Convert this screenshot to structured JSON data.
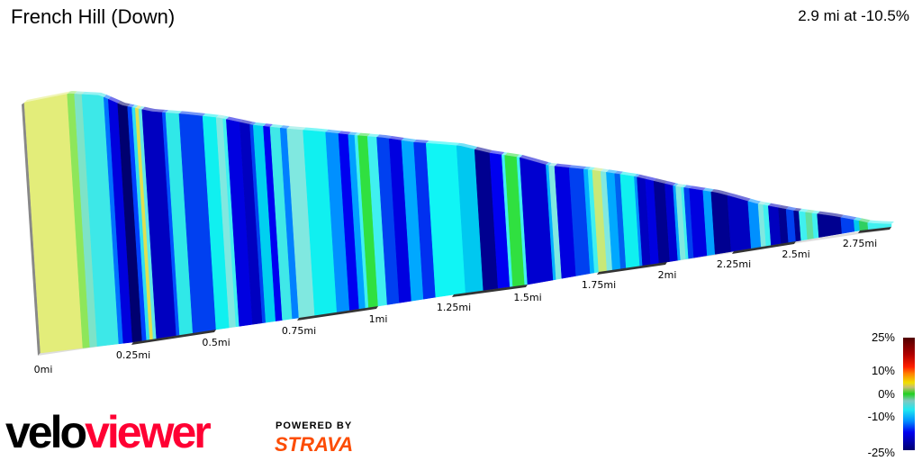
{
  "header": {
    "title": "French Hill (Down)",
    "summary": "2.9 mi at -10.5%"
  },
  "chart_data": {
    "type": "3d-elevation-profile",
    "x_unit": "mi",
    "xlim": [
      0,
      2.9
    ],
    "x_ticks": [
      {
        "v": 0,
        "label": "0mi"
      },
      {
        "v": 0.25,
        "label": "0.25mi"
      },
      {
        "v": 0.5,
        "label": "0.5mi"
      },
      {
        "v": 0.75,
        "label": "0.75mi"
      },
      {
        "v": 1,
        "label": "1mi"
      },
      {
        "v": 1.25,
        "label": "1.25mi"
      },
      {
        "v": 1.5,
        "label": "1.5mi"
      },
      {
        "v": 1.75,
        "label": "1.75mi"
      },
      {
        "v": 2,
        "label": "2mi"
      },
      {
        "v": 2.25,
        "label": "2.25mi"
      },
      {
        "v": 2.5,
        "label": "2.5mi"
      },
      {
        "v": 2.75,
        "label": "2.75mi"
      }
    ],
    "gradient_legend": {
      "labels": [
        "25%",
        "10%",
        "0%",
        "-10%",
        "-25%"
      ],
      "range": [
        -25,
        25
      ]
    },
    "segments": [
      [
        0.114,
        "#e3ed7a"
      ],
      [
        0.133,
        "#8ee65a"
      ],
      [
        0.153,
        "#7de3c8"
      ],
      [
        0.211,
        "#3de8e8"
      ],
      [
        0.223,
        "#0070ff"
      ],
      [
        0.248,
        "#0000dd"
      ],
      [
        0.277,
        "#000070"
      ],
      [
        0.29,
        "#0040ff"
      ],
      [
        0.3,
        "#30e0f0"
      ],
      [
        0.31,
        "#e0e050"
      ],
      [
        0.32,
        "#60e8e8"
      ],
      [
        0.38,
        "#0000c0"
      ],
      [
        0.39,
        "#0050ff"
      ],
      [
        0.43,
        "#30e8e8"
      ],
      [
        0.5,
        "#0040f0"
      ],
      [
        0.54,
        "#10f0f0"
      ],
      [
        0.56,
        "#80e8e0"
      ],
      [
        0.57,
        "#40f0f0"
      ],
      [
        0.61,
        "#0000e0"
      ],
      [
        0.64,
        "#0000c0"
      ],
      [
        0.65,
        "#0040f0"
      ],
      [
        0.68,
        "#00d0f0"
      ],
      [
        0.7,
        "#0000f0"
      ],
      [
        0.73,
        "#40e8e8"
      ],
      [
        0.75,
        "#0080ff"
      ],
      [
        0.8,
        "#80e8e0"
      ],
      [
        0.87,
        "#10f0f0"
      ],
      [
        0.91,
        "#0090ff"
      ],
      [
        0.94,
        "#0000f0"
      ],
      [
        0.96,
        "#00a0ff"
      ],
      [
        0.97,
        "#40f0f0"
      ],
      [
        1.0,
        "#30e040"
      ],
      [
        1.03,
        "#40f0f0"
      ],
      [
        1.07,
        "#0040f0"
      ],
      [
        1.11,
        "#0000e0"
      ],
      [
        1.15,
        "#00a8ff"
      ],
      [
        1.19,
        "#0030f0"
      ],
      [
        1.29,
        "#10f5f5"
      ],
      [
        1.35,
        "#00c8f0"
      ],
      [
        1.4,
        "#000090"
      ],
      [
        1.44,
        "#0000f0"
      ],
      [
        1.45,
        "#40f0f0"
      ],
      [
        1.49,
        "#30e040"
      ],
      [
        1.5,
        "#40f0f0"
      ],
      [
        1.59,
        "#0000d0"
      ],
      [
        1.6,
        "#00b0ff"
      ],
      [
        1.62,
        "#80e8e0"
      ],
      [
        1.67,
        "#0000e0"
      ],
      [
        1.72,
        "#0040f0"
      ],
      [
        1.735,
        "#00b0ff"
      ],
      [
        1.75,
        "#40f0f0"
      ],
      [
        1.78,
        "#c8e878"
      ],
      [
        1.8,
        "#80e8e0"
      ],
      [
        1.83,
        "#00a8ff"
      ],
      [
        1.85,
        "#0060f0"
      ],
      [
        1.9,
        "#10f0f0"
      ],
      [
        1.91,
        "#0090ff"
      ],
      [
        1.94,
        "#0000c0"
      ],
      [
        1.97,
        "#0000e0"
      ],
      [
        2.01,
        "#000090"
      ],
      [
        2.04,
        "#0000d0"
      ],
      [
        2.05,
        "#00a0ff"
      ],
      [
        2.07,
        "#80e8e0"
      ],
      [
        2.08,
        "#40f0f0"
      ],
      [
        2.1,
        "#0040f0"
      ],
      [
        2.15,
        "#0000e0"
      ],
      [
        2.18,
        "#00a0ff"
      ],
      [
        2.24,
        "#000090"
      ],
      [
        2.32,
        "#0000c0"
      ],
      [
        2.36,
        "#0090ff"
      ],
      [
        2.38,
        "#80e8e0"
      ],
      [
        2.4,
        "#40f0f0"
      ],
      [
        2.44,
        "#0000c0"
      ],
      [
        2.47,
        "#000090"
      ],
      [
        2.5,
        "#0040f0"
      ],
      [
        2.52,
        "#000090"
      ],
      [
        2.545,
        "#40f0f0"
      ],
      [
        2.57,
        "#60e0a0"
      ],
      [
        2.59,
        "#40f0f0"
      ],
      [
        2.68,
        "#000090"
      ],
      [
        2.73,
        "#0040f0"
      ],
      [
        2.75,
        "#00c8f0"
      ],
      [
        2.79,
        "#30d060"
      ],
      [
        2.9,
        "#40f0f0"
      ]
    ]
  },
  "branding": {
    "logo_velo": "velo",
    "logo_viewer": "viewer",
    "powered_by": "POWERED BY",
    "strava": "STRAVA"
  }
}
